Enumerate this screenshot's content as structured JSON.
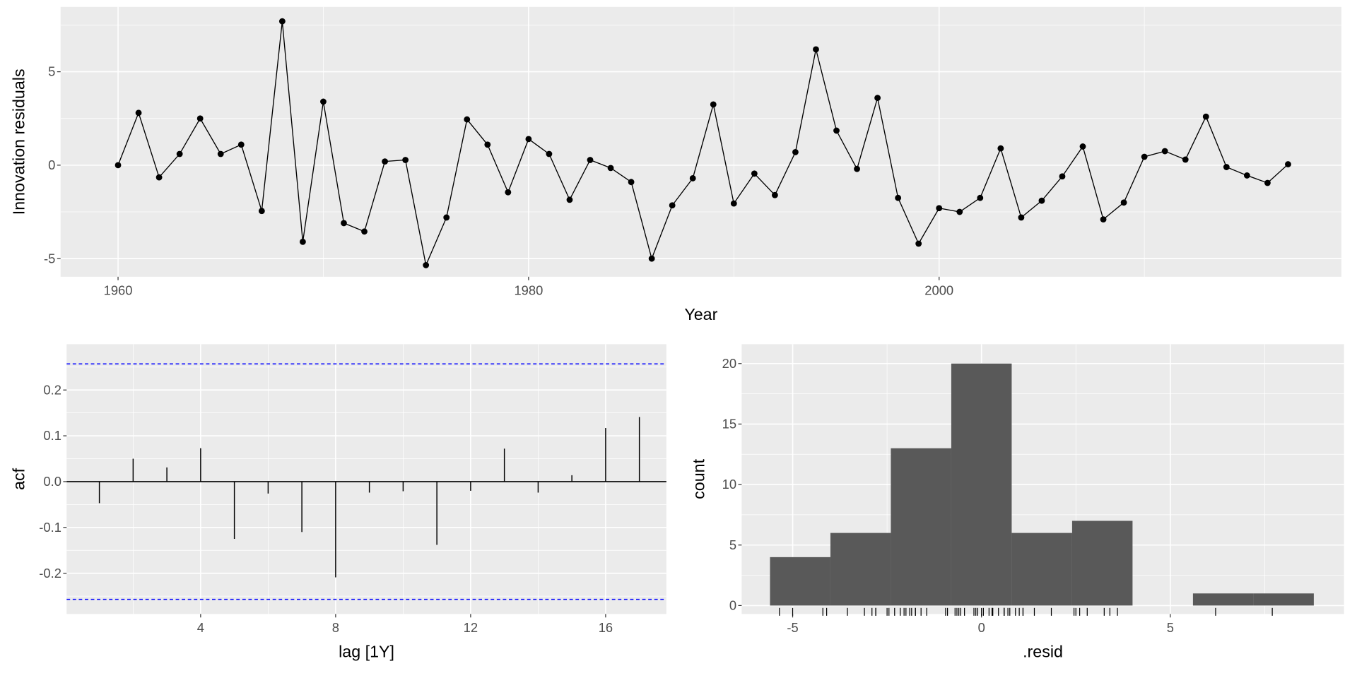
{
  "chart_data": [
    {
      "type": "line",
      "xlabel": "Year",
      "ylabel": "Innovation residuals",
      "x_ticks": [
        "1960",
        "1980",
        "2000"
      ],
      "y_ticks": [
        "-5",
        "0",
        "5"
      ],
      "xlim": [
        1957.2,
        2019.6
      ],
      "ylim": [
        -5.97,
        8.47
      ],
      "grid": true,
      "markers": true,
      "x": [
        1960,
        1961,
        1962,
        1963,
        1964,
        1965,
        1966,
        1967,
        1968,
        1969,
        1970,
        1971,
        1972,
        1973,
        1974,
        1975,
        1976,
        1977,
        1978,
        1979,
        1980,
        1981,
        1982,
        1983,
        1984,
        1985,
        1986,
        1987,
        1988,
        1989,
        1990,
        1991,
        1992,
        1993,
        1994,
        1995,
        1996,
        1997,
        1998,
        1999,
        2000,
        2001,
        2002,
        2003,
        2004,
        2005,
        2006,
        2007,
        2008,
        2009,
        2010,
        2011,
        2012,
        2013,
        2014,
        2015,
        2016,
        2017
      ],
      "y": [
        0.0,
        2.8,
        -0.65,
        0.6,
        2.5,
        0.6,
        1.1,
        -2.45,
        7.7,
        -4.1,
        3.4,
        -3.1,
        -3.55,
        0.2,
        0.28,
        -5.35,
        -2.8,
        2.45,
        1.1,
        -1.45,
        1.4,
        0.6,
        -1.85,
        0.28,
        -0.15,
        -0.9,
        -5.0,
        -2.15,
        -0.7,
        3.25,
        -2.05,
        -0.45,
        -1.6,
        0.7,
        6.2,
        1.85,
        -0.2,
        3.6,
        -1.75,
        -4.2,
        -2.3,
        -2.5,
        -1.75,
        0.9,
        -2.8,
        -1.9,
        -0.6,
        1.0,
        -2.9,
        -2.0,
        0.45,
        0.75,
        0.3,
        2.6,
        -0.1,
        -0.55,
        -0.95,
        0.05
      ]
    },
    {
      "type": "bar",
      "xlabel": "lag [1Y]",
      "ylabel": "acf",
      "x_ticks": [
        "4",
        "8",
        "12",
        "16"
      ],
      "y_ticks": [
        "-0.2",
        "-0.1",
        "0.0",
        "0.1",
        "0.2"
      ],
      "xlim": [
        0.03,
        17.8
      ],
      "ylim": [
        -0.289,
        0.3
      ],
      "grid": true,
      "lags": [
        1,
        2,
        3,
        4,
        5,
        6,
        7,
        8,
        9,
        10,
        11,
        12,
        13,
        14,
        15,
        16,
        17
      ],
      "values": [
        -0.047,
        0.05,
        0.031,
        0.073,
        -0.125,
        -0.026,
        -0.11,
        -0.209,
        -0.024,
        -0.021,
        -0.138,
        -0.02,
        0.072,
        -0.024,
        0.014,
        0.117,
        0.141
      ],
      "confidence_bound": 0.257,
      "bound_color": "#0000ff"
    },
    {
      "type": "bar",
      "subtype": "histogram",
      "xlabel": ".resid",
      "ylabel": "count",
      "x_ticks": [
        "-5",
        "0",
        "5"
      ],
      "y_ticks": [
        "0",
        "5",
        "10",
        "15",
        "20"
      ],
      "xlim": [
        -6.35,
        9.6
      ],
      "ylim": [
        -0.7,
        21.6
      ],
      "grid": true,
      "bin_width": 1.6,
      "bin_starts": [
        -5.6,
        -4.0,
        -2.4,
        -0.8,
        0.8,
        2.4,
        4.0,
        5.6,
        7.2
      ],
      "counts": [
        4,
        6,
        13,
        20,
        6,
        7,
        0,
        1,
        1
      ],
      "bar_color": "#595959",
      "rug": true
    }
  ]
}
